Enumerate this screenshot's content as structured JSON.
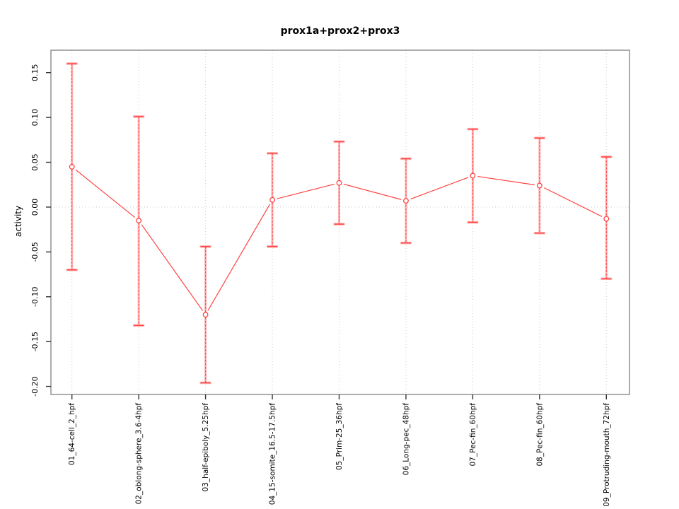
{
  "chart_data": {
    "type": "line",
    "title": "prox1a+prox2+prox3",
    "xlabel": "",
    "ylabel": "activity",
    "legend": "none",
    "grid": "vertical dotted line at each category; horizontal dotted line at y=0",
    "ylim": [
      -0.209,
      0.175
    ],
    "ytick_values": [
      0.15,
      0.1,
      0.05,
      0.0,
      -0.05,
      -0.1,
      -0.15,
      -0.2
    ],
    "ytick_labels": [
      "0.15",
      "0.10",
      "0.05",
      "0.00",
      "-0.05",
      "-0.10",
      "-0.15",
      "-0.20"
    ],
    "categories": [
      "01_64-cell_2_hpf",
      "02_oblong-sphere_3.6-4hpf",
      "03_half-epiboly_5.25hpf",
      "04_15-somite_16.5-17.5hpf",
      "05_Prim-25_36hpf",
      "06_Long-pec_48hpf",
      "07_Pec-fin_60hpf",
      "08_Pec-fin_60hpf",
      "09_Protruding-mouth_72hpf"
    ],
    "series": [
      {
        "name": "activity",
        "marker": "open-circle",
        "values": [
          0.045,
          -0.015,
          -0.12,
          0.008,
          0.027,
          0.007,
          0.035,
          0.024,
          -0.013
        ],
        "error_upper": [
          0.16,
          0.101,
          -0.044,
          0.06,
          0.073,
          0.054,
          0.087,
          0.077,
          0.056
        ],
        "error_lower": [
          -0.07,
          -0.132,
          -0.196,
          -0.044,
          -0.019,
          -0.04,
          -0.017,
          -0.029,
          -0.08
        ]
      }
    ],
    "colors": {
      "line": "#ff4343",
      "error_band": "#ffb3b3",
      "grid": "#cccccc",
      "frame": "#888888",
      "tick": "#333333",
      "text": "#000000",
      "background": "#ffffff"
    }
  }
}
